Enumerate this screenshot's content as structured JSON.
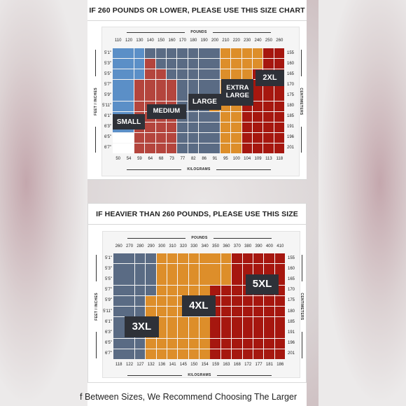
{
  "charts": [
    {
      "title": "IF 260 POUNDS OR LOWER, PLEASE USE THIS SIZE CHART",
      "x_axis_title": "POUNDS",
      "x_bottom_title": "KILOGRAMS",
      "y_left_title": "FEET / INCHES",
      "y_right_title": "CENTIMETERS",
      "pounds": [
        "110",
        "120",
        "130",
        "140",
        "150",
        "160",
        "170",
        "180",
        "190",
        "200",
        "210",
        "220",
        "230",
        "240",
        "250",
        "260"
      ],
      "kilograms": [
        "50",
        "54",
        "59",
        "64",
        "68",
        "73",
        "77",
        "82",
        "86",
        "91",
        "95",
        "100",
        "104",
        "109",
        "113",
        "118"
      ],
      "feet": [
        "5'1\"",
        "5'3\"",
        "5'5\"",
        "5'7\"",
        "5'9\"",
        "5'11\"",
        "6'1\"",
        "6'3\"",
        "6'5\"",
        "6'7\""
      ],
      "centimeters": [
        "155",
        "160",
        "165",
        "170",
        "175",
        "180",
        "185",
        "191",
        "196",
        "201"
      ],
      "sizes": [
        {
          "key": "S",
          "label": "SMALL",
          "color": "#5b8fc7"
        },
        {
          "key": "M",
          "label": "MEDIUM",
          "color": "#b4453d"
        },
        {
          "key": "L",
          "label": "LARGE",
          "color": "#5a6b84"
        },
        {
          "key": "XL",
          "label": "EXTRA LARGE",
          "color": "#dd8e2a"
        },
        {
          "key": "X2",
          "label": "2XL",
          "color": "#a6170f"
        }
      ]
    },
    {
      "title": "IF HEAVIER THAN 260 POUNDS, PLEASE USE THIS SIZE CHART",
      "x_axis_title": "POUNDS",
      "x_bottom_title": "KILOGRAMS",
      "y_left_title": "FEET / INCHES",
      "y_right_title": "CENTIMETERS",
      "pounds": [
        "260",
        "270",
        "280",
        "290",
        "300",
        "310",
        "320",
        "330",
        "340",
        "350",
        "360",
        "370",
        "380",
        "390",
        "400",
        "410"
      ],
      "kilograms": [
        "118",
        "122",
        "127",
        "132",
        "136",
        "141",
        "145",
        "150",
        "154",
        "159",
        "163",
        "168",
        "172",
        "177",
        "181",
        "186"
      ],
      "feet": [
        "5'1\"",
        "5'3\"",
        "5'5\"",
        "5'7\"",
        "5'9\"",
        "5'11\"",
        "6'1\"",
        "6'3\"",
        "6'5\"",
        "6'7\""
      ],
      "centimeters": [
        "155",
        "160",
        "165",
        "170",
        "175",
        "180",
        "185",
        "191",
        "196",
        "201"
      ],
      "sizes": [
        {
          "key": "3XL",
          "label": "3XL",
          "color": "#5a6b84"
        },
        {
          "key": "4XL",
          "label": "4XL",
          "color": "#dd8e2a"
        },
        {
          "key": "5XL",
          "label": "5XL",
          "color": "#a6170f"
        }
      ]
    }
  ],
  "footer": "f Between Sizes, We Recommend Choosing The Larger"
}
